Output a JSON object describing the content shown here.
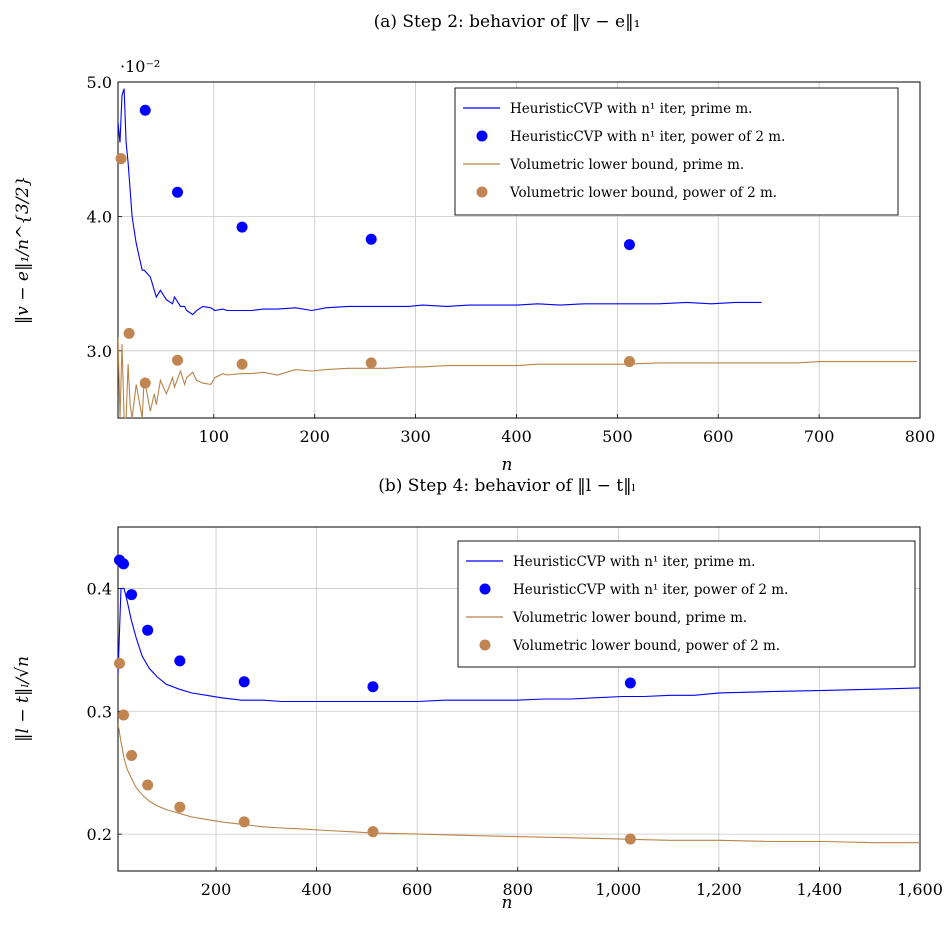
{
  "chart_data": [
    {
      "type": "line",
      "title": "(a) Step 2: behavior of ‖v − e‖₁",
      "xlabel": "n",
      "ylabel": "‖v − e‖₁/n^{3/2}",
      "y_scale_label": "·10⁻²",
      "xlim": [
        5,
        800
      ],
      "ylim": [
        2.5,
        5.0
      ],
      "xticks": [
        100,
        200,
        300,
        400,
        500,
        600,
        700,
        800
      ],
      "yticks": [
        3.0,
        4.0,
        5.0
      ],
      "ytick_labels": [
        "3.0",
        "4.0",
        "5.0"
      ],
      "grid": true,
      "legend_position": "top-right",
      "series": [
        {
          "name": "HeuristicCVP with n¹ iter, prime m.",
          "kind": "line",
          "color": "#0000ff",
          "x": [
            5,
            7,
            9,
            11,
            13,
            15,
            17,
            19,
            23,
            29,
            31,
            37,
            41,
            43,
            47,
            53,
            59,
            61,
            67,
            71,
            73,
            79,
            83,
            89,
            97,
            101,
            109,
            113,
            127,
            137,
            149,
            163,
            181,
            197,
            211,
            233,
            251,
            271,
            293,
            307,
            331,
            353,
            379,
            401,
            421,
            443,
            467,
            491,
            509,
            541,
            569,
            593,
            617,
            643
          ],
          "y": [
            4.7,
            4.55,
            4.9,
            4.95,
            4.55,
            4.4,
            4.2,
            4.0,
            3.8,
            3.6,
            3.6,
            3.55,
            3.45,
            3.4,
            3.45,
            3.38,
            3.35,
            3.4,
            3.33,
            3.33,
            3.3,
            3.27,
            3.3,
            3.33,
            3.32,
            3.3,
            3.31,
            3.3,
            3.3,
            3.3,
            3.31,
            3.31,
            3.32,
            3.3,
            3.32,
            3.33,
            3.33,
            3.33,
            3.33,
            3.34,
            3.33,
            3.34,
            3.34,
            3.34,
            3.35,
            3.34,
            3.35,
            3.35,
            3.35,
            3.35,
            3.36,
            3.35,
            3.36,
            3.36
          ]
        },
        {
          "name": "HeuristicCVP with n¹ iter, power of 2 m.",
          "kind": "scatter",
          "color": "#0000ff",
          "x": [
            32,
            64,
            128,
            256,
            512
          ],
          "y": [
            4.79,
            4.18,
            3.92,
            3.83,
            3.79
          ]
        },
        {
          "name": "Volumetric lower bound, prime m.",
          "kind": "line",
          "color": "#b8844a",
          "x": [
            5,
            7,
            9,
            11,
            13,
            15,
            17,
            19,
            23,
            29,
            31,
            37,
            41,
            43,
            47,
            53,
            59,
            61,
            67,
            71,
            73,
            79,
            83,
            89,
            97,
            101,
            109,
            113,
            127,
            137,
            149,
            163,
            181,
            197,
            211,
            233,
            251,
            271,
            293,
            307,
            331,
            353,
            379,
            401,
            421,
            443,
            467,
            491,
            509,
            541,
            569,
            593,
            617,
            643,
            677,
            701,
            733,
            769,
            797
          ],
          "y": [
            3.1,
            2.5,
            3.05,
            2.5,
            2.5,
            2.9,
            2.6,
            2.5,
            2.75,
            2.5,
            2.8,
            2.55,
            2.68,
            2.6,
            2.78,
            2.68,
            2.8,
            2.73,
            2.85,
            2.75,
            2.8,
            2.84,
            2.78,
            2.76,
            2.75,
            2.8,
            2.83,
            2.82,
            2.83,
            2.83,
            2.84,
            2.82,
            2.86,
            2.85,
            2.86,
            2.87,
            2.87,
            2.87,
            2.88,
            2.88,
            2.89,
            2.89,
            2.89,
            2.89,
            2.9,
            2.9,
            2.9,
            2.9,
            2.9,
            2.91,
            2.91,
            2.91,
            2.91,
            2.91,
            2.91,
            2.92,
            2.92,
            2.92,
            2.92
          ]
        },
        {
          "name": "Volumetric lower bound, power of 2 m.",
          "kind": "scatter",
          "color": "#c08550",
          "x": [
            8,
            16,
            32,
            64,
            128,
            256,
            512
          ],
          "y": [
            4.43,
            3.13,
            2.76,
            2.93,
            2.9,
            2.91,
            2.92
          ]
        }
      ]
    },
    {
      "type": "line",
      "title": "(b) Step 4: behavior of ‖l − t‖ₗ",
      "xlabel": "n",
      "ylabel": "‖l − t‖ₗ/√n",
      "xlim": [
        5,
        1600
      ],
      "ylim": [
        0.17,
        0.45
      ],
      "xticks": [
        200,
        400,
        600,
        800,
        1000,
        1200,
        1400,
        1600
      ],
      "xtick_labels": [
        "200",
        "400",
        "600",
        "800",
        "1,000",
        "1,200",
        "1,400",
        "1,600"
      ],
      "yticks": [
        0.2,
        0.3,
        0.4
      ],
      "ytick_labels": [
        "0.2",
        "0.3",
        "0.4"
      ],
      "grid": true,
      "legend_position": "top-right",
      "series": [
        {
          "name": "HeuristicCVP with n¹ iter, prime m.",
          "kind": "line",
          "color": "#0000ff",
          "x": [
            5,
            11,
            17,
            23,
            31,
            41,
            53,
            67,
            83,
            101,
            127,
            151,
            181,
            211,
            251,
            293,
            331,
            379,
            421,
            467,
            509,
            557,
            601,
            653,
            701,
            751,
            797,
            853,
            907,
            953,
            1009,
            1051,
            1103,
            1151,
            1201,
            1301,
            1409,
            1511,
            1601
          ],
          "y": [
            0.33,
            0.4,
            0.4,
            0.39,
            0.375,
            0.36,
            0.345,
            0.335,
            0.328,
            0.322,
            0.318,
            0.315,
            0.313,
            0.311,
            0.309,
            0.309,
            0.308,
            0.308,
            0.308,
            0.308,
            0.308,
            0.308,
            0.308,
            0.309,
            0.309,
            0.309,
            0.309,
            0.31,
            0.31,
            0.311,
            0.312,
            0.312,
            0.313,
            0.313,
            0.315,
            0.316,
            0.317,
            0.318,
            0.319
          ]
        },
        {
          "name": "HeuristicCVP with n¹ iter, power of 2 m.",
          "kind": "scatter",
          "color": "#0000ff",
          "x": [
            8,
            16,
            32,
            64,
            128,
            256,
            512,
            1024
          ],
          "y": [
            0.423,
            0.42,
            0.395,
            0.366,
            0.341,
            0.324,
            0.32,
            0.323
          ]
        },
        {
          "name": "Volumetric lower bound, prime m.",
          "kind": "line",
          "color": "#b8844a",
          "x": [
            5,
            11,
            17,
            23,
            31,
            41,
            53,
            67,
            83,
            101,
            127,
            151,
            181,
            211,
            251,
            293,
            331,
            379,
            421,
            467,
            509,
            601,
            701,
            797,
            907,
            1009,
            1103,
            1201,
            1301,
            1409,
            1511,
            1601
          ],
          "y": [
            0.29,
            0.275,
            0.262,
            0.253,
            0.246,
            0.238,
            0.232,
            0.227,
            0.223,
            0.22,
            0.217,
            0.214,
            0.212,
            0.21,
            0.208,
            0.206,
            0.205,
            0.204,
            0.203,
            0.202,
            0.201,
            0.2,
            0.199,
            0.198,
            0.197,
            0.196,
            0.195,
            0.195,
            0.194,
            0.194,
            0.193,
            0.193
          ]
        },
        {
          "name": "Volumetric lower bound, power of 2 m.",
          "kind": "scatter",
          "color": "#c08550",
          "x": [
            8,
            16,
            32,
            64,
            128,
            256,
            512,
            1024
          ],
          "y": [
            0.339,
            0.297,
            0.264,
            0.24,
            0.222,
            0.21,
            0.202,
            0.196
          ]
        }
      ]
    }
  ]
}
